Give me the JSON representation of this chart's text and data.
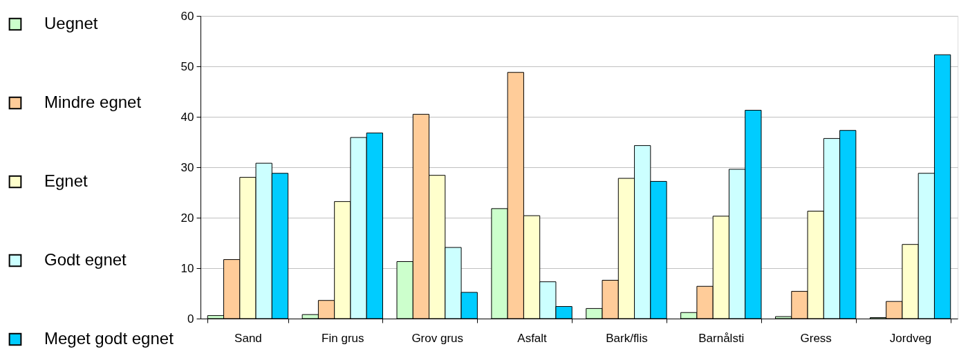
{
  "chart_data": {
    "type": "bar",
    "categories": [
      "Sand",
      "Fin grus",
      "Grov grus",
      "Asfalt",
      "Bark/flis",
      "Barnålsti",
      "Gress",
      "Jordveg"
    ],
    "series": [
      {
        "name": "Uegnet",
        "color": "#ccffcc",
        "values": [
          0.6,
          0.8,
          11.3,
          21.8,
          2.0,
          1.2,
          0.4,
          0.2
        ]
      },
      {
        "name": "Mindre egnet",
        "color": "#ffcc99",
        "values": [
          11.7,
          3.6,
          40.5,
          48.8,
          7.6,
          6.4,
          5.4,
          3.4
        ]
      },
      {
        "name": "Egnet",
        "color": "#ffffcc",
        "values": [
          28.0,
          23.2,
          28.4,
          20.4,
          27.8,
          20.3,
          21.3,
          14.7
        ]
      },
      {
        "name": "Godt egnet",
        "color": "#ccffff",
        "values": [
          30.8,
          35.9,
          14.1,
          7.3,
          34.3,
          29.6,
          35.7,
          28.8
        ]
      },
      {
        "name": "Meget godt egnet",
        "color": "#00ccff",
        "values": [
          28.8,
          36.8,
          5.2,
          2.4,
          27.2,
          41.3,
          37.3,
          52.3
        ]
      }
    ],
    "ylim": [
      0,
      60
    ],
    "yticks": [
      0,
      10,
      20,
      30,
      40,
      50,
      60
    ],
    "grid": "y",
    "legend": "left"
  }
}
